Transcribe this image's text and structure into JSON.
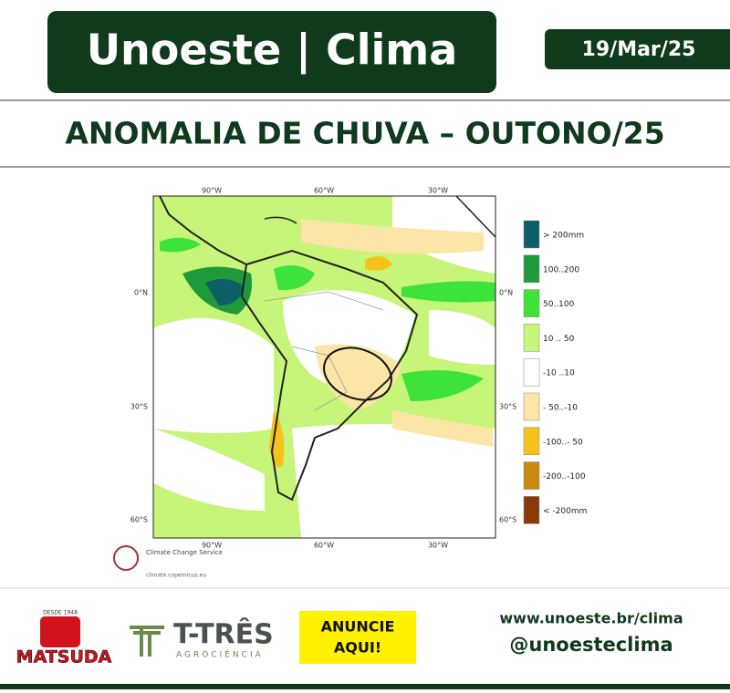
{
  "header": {
    "title": "Unoeste | Clima",
    "date": "19/Mar/25"
  },
  "subtitle": "ANOMALIA DE CHUVA – OUTONO/25",
  "map": {
    "lon_labels": [
      "90°W",
      "60°W",
      "30°W"
    ],
    "lat_labels": [
      "0°N",
      "30°S",
      "60°S"
    ],
    "legend": [
      {
        "label": "> 200mm",
        "color": "#0e5e66"
      },
      {
        "label": "100..200",
        "color": "#1e9a3a"
      },
      {
        "label": "50..100",
        "color": "#3ee33a"
      },
      {
        "label": "10 .. 50",
        "color": "#c6f57a"
      },
      {
        "label": "-10 ..10",
        "color": "#ffffff"
      },
      {
        "label": "- 50..-10",
        "color": "#fbe6a8"
      },
      {
        "label": "-100..- 50",
        "color": "#f5c21b"
      },
      {
        "label": "-200..-100",
        "color": "#c8890e"
      },
      {
        "label": "< -200mm",
        "color": "#8a3a0a"
      }
    ],
    "credit": {
      "name": "Climate Change Service",
      "url": "climate.copernicus.eu"
    }
  },
  "footer": {
    "sponsor1": {
      "tag": "DESDE 1948",
      "name": "MATSUDA"
    },
    "sponsor2": {
      "name": "T-TRÊS",
      "tag": "AGROCIÊNCIA"
    },
    "ad": [
      "ANUNCIE",
      "AQUI!"
    ],
    "url": "www.unoeste.br/clima",
    "handle": "@unoesteclima"
  }
}
